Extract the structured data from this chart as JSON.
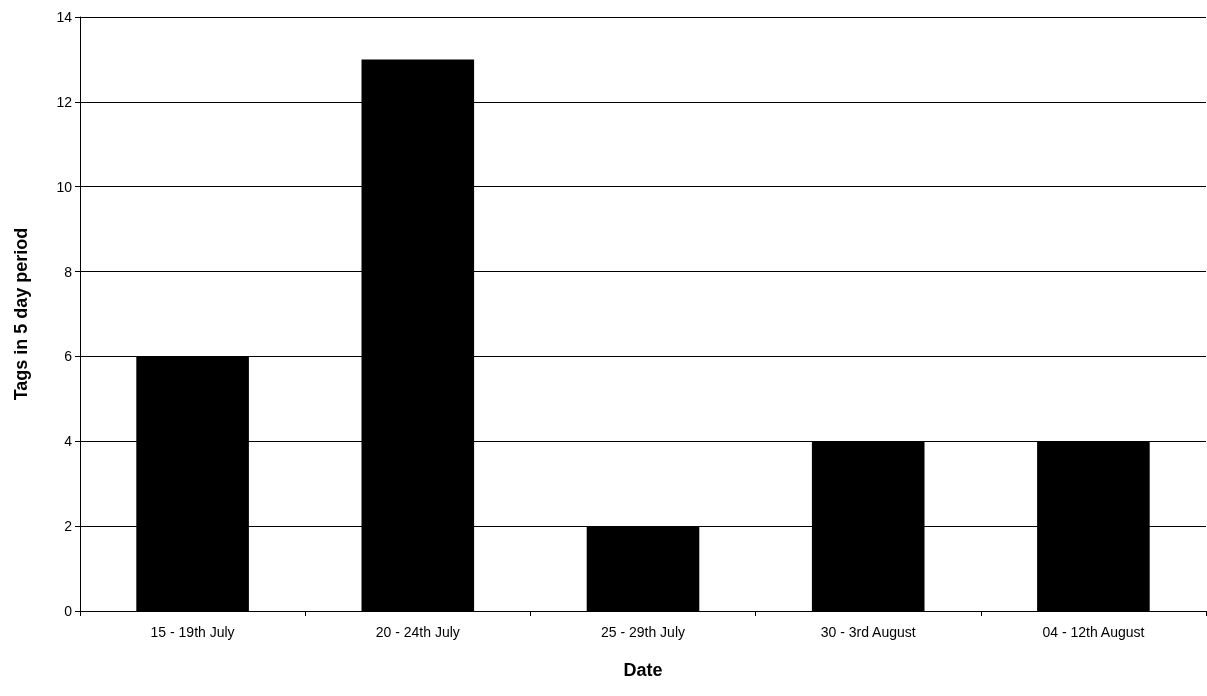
{
  "chart_data": {
    "type": "bar",
    "xlabel": "Date",
    "ylabel": "Tags in 5 day period",
    "categories": [
      "15 - 19th July",
      "20 - 24th July",
      "25 - 29th July",
      "30 - 3rd August",
      "04 - 12th August"
    ],
    "values": [
      6,
      13,
      2,
      4,
      4
    ],
    "color": "#000000",
    "ylim": [
      0,
      14
    ],
    "yticks": [
      0,
      2,
      4,
      6,
      8,
      10,
      12,
      14
    ],
    "grid": "y"
  }
}
